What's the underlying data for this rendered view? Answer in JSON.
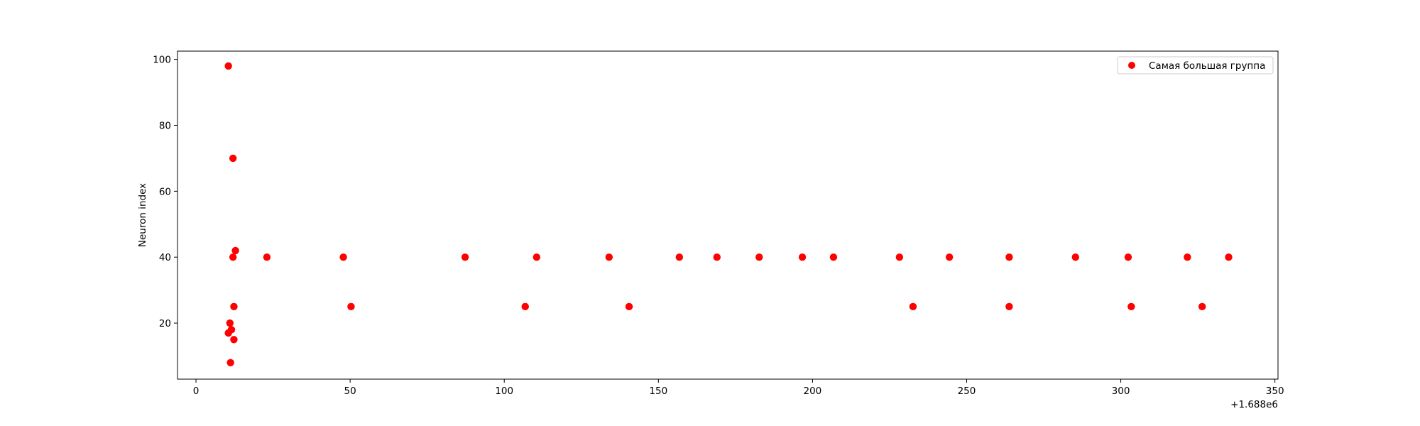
{
  "chart_data": {
    "type": "scatter",
    "title": "",
    "xlabel": "",
    "ylabel": "Neuron index",
    "x_offset_label": "+1.688e6",
    "xlim": [
      1687994,
      1688351
    ],
    "ylim": [
      3,
      102.5
    ],
    "xticks": [
      0,
      50,
      100,
      150,
      200,
      250,
      300,
      350
    ],
    "yticks": [
      20,
      40,
      60,
      80,
      100
    ],
    "grid": false,
    "legend_position": "top-right",
    "marker_color": "#ff0000",
    "series": [
      {
        "name": "Самая большая группа",
        "x": [
          1688010.5,
          1688012,
          1688012.8,
          1688012,
          1688012.3,
          1688011,
          1688011.5,
          1688010.5,
          1688012.3,
          1688011.2,
          1688023,
          1688047.8,
          1688050.3,
          1688087.3,
          1688106.8,
          1688110.5,
          1688134,
          1688140.5,
          1688156.8,
          1688169,
          1688182.7,
          1688196.7,
          1688206.8,
          1688228.2,
          1688232.6,
          1688244.4,
          1688263.8,
          1688263.8,
          1688285.3,
          1688302.4,
          1688303.4,
          1688321.6,
          1688326.4,
          1688335
        ],
        "y": [
          98,
          70,
          42,
          40,
          25,
          20,
          18,
          17,
          15,
          8,
          40,
          40,
          25,
          40,
          25,
          40,
          40,
          25,
          40,
          40,
          40,
          40,
          40,
          40,
          25,
          40,
          40,
          25,
          40,
          40,
          25,
          40,
          25,
          40
        ]
      }
    ]
  }
}
